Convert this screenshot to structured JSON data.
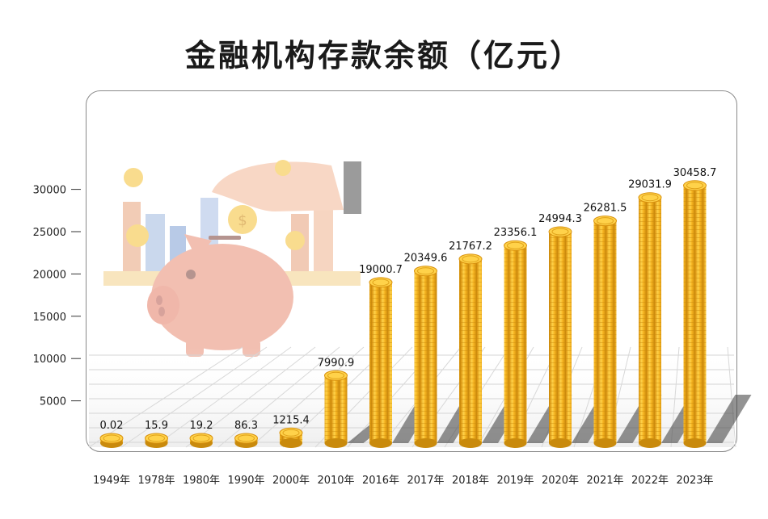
{
  "title": "金融机构存款余额（亿元）",
  "chart_data": {
    "type": "bar",
    "title": "金融机构存款余额（亿元）",
    "xlabel": "",
    "ylabel": "",
    "categories": [
      "1949年",
      "1978年",
      "1980年",
      "1990年",
      "2000年",
      "2010年",
      "2016年",
      "2017年",
      "2018年",
      "2019年",
      "2020年",
      "2021年",
      "2022年",
      "2023年"
    ],
    "values": [
      0.02,
      15.9,
      19.2,
      86.3,
      1215.4,
      7990.9,
      19000.7,
      20349.6,
      21767.2,
      23356.1,
      24994.3,
      26281.5,
      29031.9,
      30458.7
    ],
    "value_labels": [
      "0.02",
      "15.9",
      "19.2",
      "86.3",
      "1215.4",
      "7990.9",
      "19000.7",
      "20349.6",
      "21767.2",
      "23356.1",
      "24994.3",
      "26281.5",
      "29031.9",
      "30458.7"
    ],
    "y_ticks": [
      5000,
      10000,
      15000,
      20000,
      25000,
      30000
    ],
    "ylim": [
      0,
      30458.7
    ],
    "grid": true,
    "bar_style": "stacked gold coins",
    "colors": {
      "coin": "#f2b01e",
      "coin_light": "#ffd96a",
      "coin_dark": "#c98a0c",
      "frame": "#8a8a8a"
    }
  }
}
